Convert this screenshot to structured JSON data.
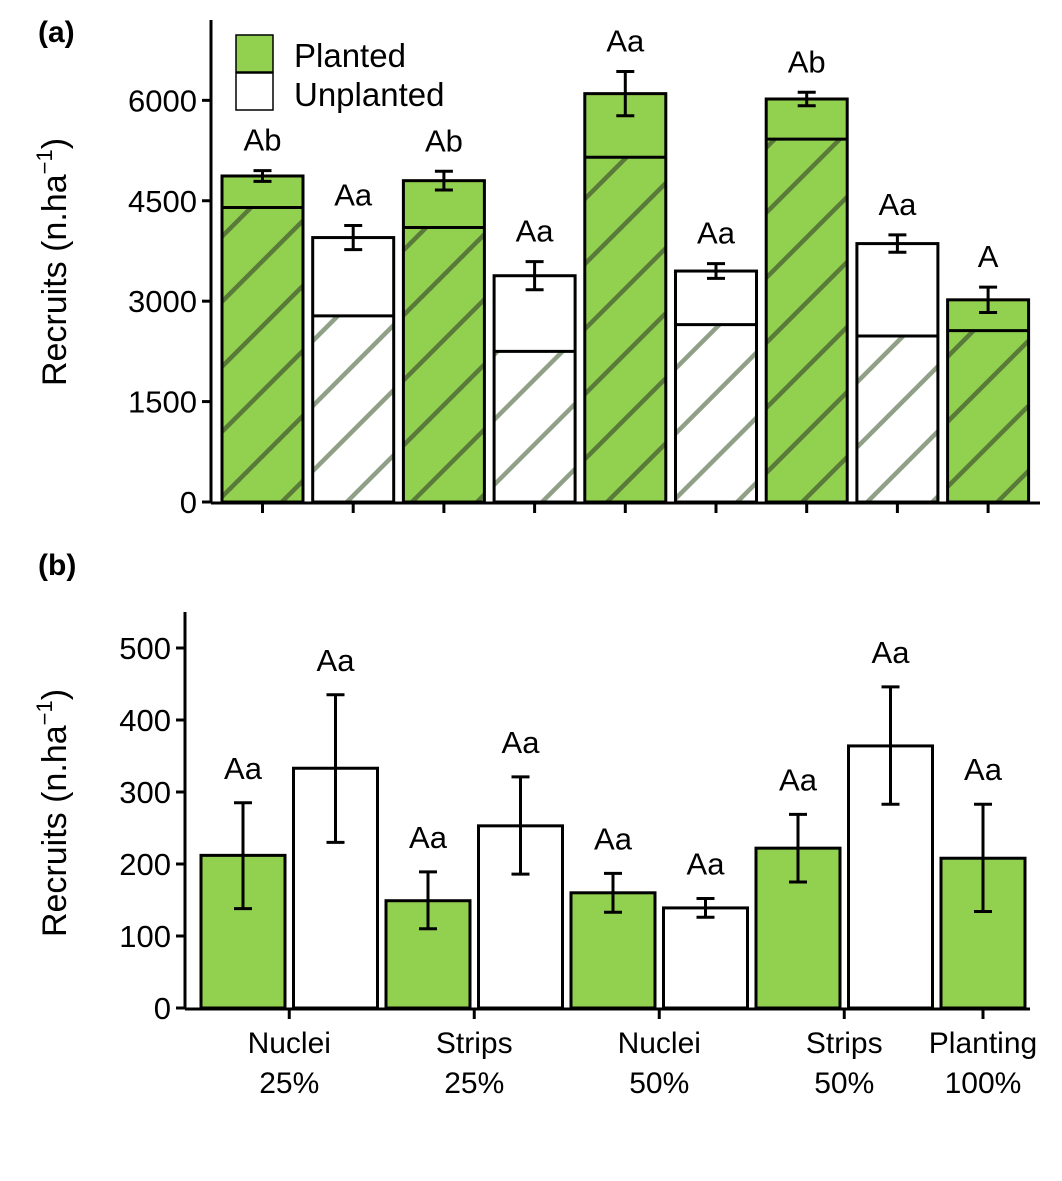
{
  "colors": {
    "planted": "#92d050",
    "unplanted": "#ffffff",
    "hatch_on_green": "#5a7a3a",
    "hatch_on_white": "#8fa087",
    "stroke": "#000000"
  },
  "legend": {
    "planted": "Planted",
    "unplanted": "Unplanted",
    "placement": "top-left"
  },
  "chart_data": [
    {
      "panel": "(a)",
      "type": "bar",
      "stacked_inner_portion": true,
      "ylabel": "Recruits (n.ha",
      "ylabel_sup": "−1",
      "ylabel_close": ")",
      "ylim": [
        0,
        7200
      ],
      "yticks": [
        0,
        1500,
        3000,
        4500,
        6000
      ],
      "grid": false,
      "bars": [
        {
          "fill": "planted",
          "value": 4870,
          "inner": 4400,
          "err": 80,
          "label": "Ab"
        },
        {
          "fill": "unplanted",
          "value": 3950,
          "inner": 2780,
          "err": 180,
          "label": "Aa"
        },
        {
          "fill": "planted",
          "value": 4800,
          "inner": 4100,
          "err": 140,
          "label": "Ab"
        },
        {
          "fill": "unplanted",
          "value": 3380,
          "inner": 2250,
          "err": 210,
          "label": "Aa"
        },
        {
          "fill": "planted",
          "value": 6100,
          "inner": 5150,
          "err": 330,
          "label": "Aa"
        },
        {
          "fill": "unplanted",
          "value": 3450,
          "inner": 2650,
          "err": 110,
          "label": "Aa"
        },
        {
          "fill": "planted",
          "value": 6020,
          "inner": 5420,
          "err": 100,
          "label": "Ab"
        },
        {
          "fill": "unplanted",
          "value": 3860,
          "inner": 2480,
          "err": 130,
          "label": "Aa"
        },
        {
          "fill": "planted",
          "value": 3020,
          "inner": 2560,
          "err": 190,
          "label": "A"
        }
      ]
    },
    {
      "panel": "(b)",
      "type": "bar",
      "ylabel": "Recruits (n.ha",
      "ylabel_sup": "−1",
      "ylabel_close": ")",
      "ylim": [
        0,
        550
      ],
      "yticks": [
        0,
        100,
        200,
        300,
        400,
        500
      ],
      "grid": false,
      "categories": [
        {
          "line1": "Nuclei",
          "line2": "25%"
        },
        {
          "line1": "Strips",
          "line2": "25%"
        },
        {
          "line1": "Nuclei",
          "line2": "50%"
        },
        {
          "line1": "Strips",
          "line2": "50%"
        },
        {
          "line1": "Planting",
          "line2": "100%"
        }
      ],
      "bars": [
        {
          "fill": "planted",
          "value": 212,
          "low": 138,
          "high": 285,
          "label": "Aa"
        },
        {
          "fill": "unplanted",
          "value": 333,
          "low": 230,
          "high": 435,
          "label": "Aa"
        },
        {
          "fill": "planted",
          "value": 149,
          "low": 110,
          "high": 189,
          "label": "Aa"
        },
        {
          "fill": "unplanted",
          "value": 253,
          "low": 186,
          "high": 321,
          "label": "Aa"
        },
        {
          "fill": "planted",
          "value": 160,
          "low": 133,
          "high": 187,
          "label": "Aa"
        },
        {
          "fill": "unplanted",
          "value": 139,
          "low": 126,
          "high": 152,
          "label": "Aa"
        },
        {
          "fill": "planted",
          "value": 222,
          "low": 175,
          "high": 269,
          "label": "Aa"
        },
        {
          "fill": "unplanted",
          "value": 364,
          "low": 283,
          "high": 446,
          "label": "Aa"
        },
        {
          "fill": "planted",
          "value": 208,
          "low": 134,
          "high": 283,
          "label": "Aa"
        }
      ]
    }
  ]
}
